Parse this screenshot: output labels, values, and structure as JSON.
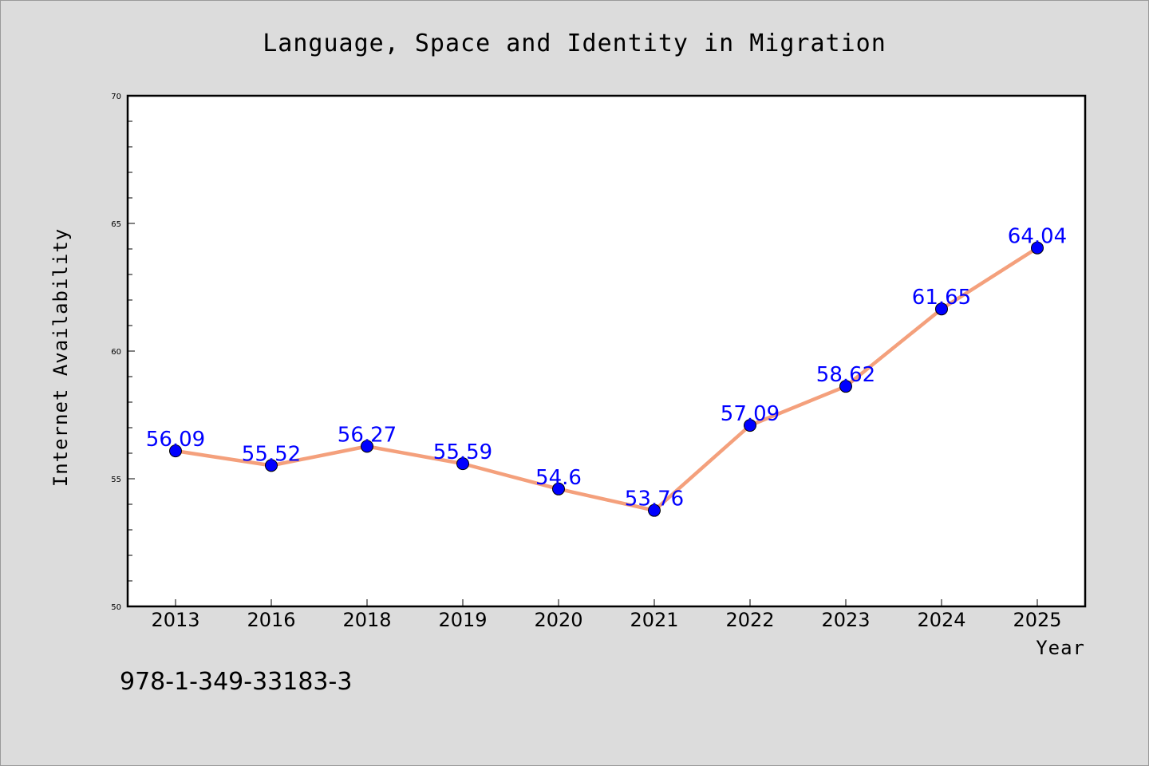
{
  "chart_data": {
    "type": "line",
    "title": "Language, Space and Identity in Migration",
    "xlabel": "Year",
    "ylabel": "Internet Availability",
    "categories": [
      "2013",
      "2016",
      "2018",
      "2019",
      "2020",
      "2021",
      "2022",
      "2023",
      "2024",
      "2025"
    ],
    "values": [
      56.09,
      55.52,
      56.27,
      55.59,
      54.6,
      53.76,
      57.09,
      58.62,
      61.65,
      64.04
    ],
    "data_labels": [
      "56.09",
      "55.52",
      "56.27",
      "55.59",
      "54.6",
      "53.76",
      "57.09",
      "58.62",
      "61.65",
      "64.04"
    ],
    "ylim": [
      50,
      70
    ],
    "yticks": [
      "50",
      "55",
      "60",
      "65",
      "70"
    ],
    "grid": false,
    "line_color": "#f4a07c",
    "marker_color": "#0000ff",
    "label_color": "#0000ff"
  },
  "footer": {
    "isbn": "978-1-349-33183-3"
  }
}
